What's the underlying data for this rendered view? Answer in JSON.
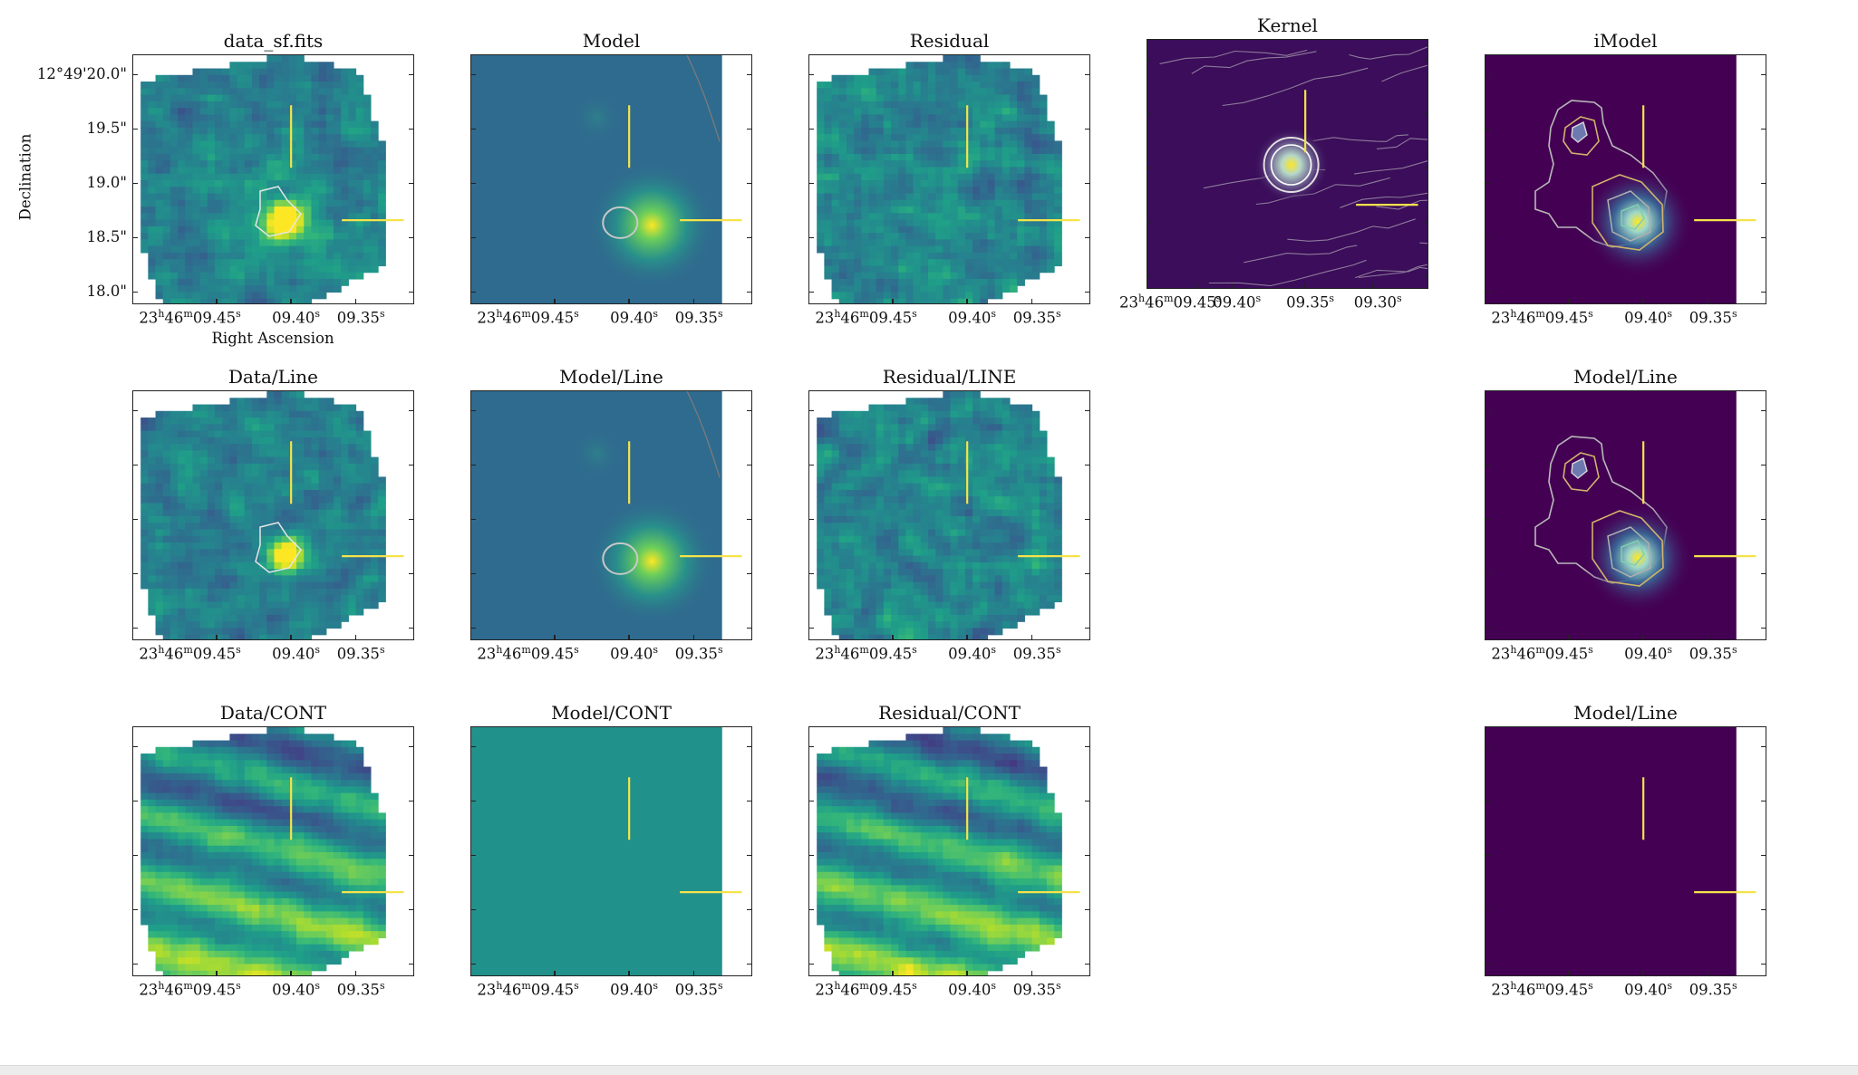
{
  "colors": {
    "viridis_dark": "#440154",
    "viridis_mid": "#21918c",
    "viridis_bright": "#fde725",
    "marker_line": "#f5e34b",
    "contour_light": "#c8c8c8",
    "background": "#ffffff"
  },
  "axis_labels": {
    "declination": "Declination",
    "right_ascension": "Right Ascension"
  },
  "chart_data": {
    "type": "heatmap",
    "layout": "3x5 grid",
    "panels": [
      {
        "title": "data_sf.fits",
        "type": "heatmap",
        "colormap": "viridis",
        "ra_ticks": [
          "23h46m09.45s",
          "09.40s",
          "09.35s"
        ],
        "dec_ticks": [
          "12°49'20.0\"",
          "19.5\"",
          "19.0\"",
          "18.5\"",
          "18.0\""
        ],
        "xlabel": "Right Ascension",
        "ylabel": "Declination"
      },
      {
        "title": "Model",
        "type": "heatmap",
        "colormap": "viridis",
        "ra_ticks": [
          "23h46m09.45s",
          "09.40s",
          "09.35s"
        ]
      },
      {
        "title": "Residual",
        "type": "heatmap",
        "colormap": "viridis",
        "ra_ticks": [
          "23h46m09.45s",
          "09.40s",
          "09.35s"
        ]
      },
      {
        "title": "Kernel",
        "type": "heatmap",
        "colormap": "viridis",
        "ra_ticks": [
          "23h46m09.45s",
          "09.40s",
          "09.35s",
          "09.30s"
        ]
      },
      {
        "title": "iModel",
        "type": "heatmap",
        "colormap": "viridis",
        "ra_ticks": [
          "23h46m09.45s",
          "09.40s",
          "09.35s"
        ]
      },
      {
        "title": "Data/Line",
        "type": "heatmap",
        "colormap": "viridis",
        "ra_ticks": [
          "23h46m09.45s",
          "09.40s",
          "09.35s"
        ]
      },
      {
        "title": "Model/Line",
        "type": "heatmap",
        "colormap": "viridis",
        "ra_ticks": [
          "23h46m09.45s",
          "09.40s",
          "09.35s"
        ]
      },
      {
        "title": "Residual/LINE",
        "type": "heatmap",
        "colormap": "viridis",
        "ra_ticks": [
          "23h46m09.45s",
          "09.40s",
          "09.35s"
        ]
      },
      {
        "title": "Model/Line",
        "type": "heatmap",
        "colormap": "viridis",
        "ra_ticks": [
          "23h46m09.45s",
          "09.40s",
          "09.35s"
        ]
      },
      {
        "title": "Data/CONT",
        "type": "heatmap",
        "colormap": "viridis",
        "ra_ticks": [
          "23h46m09.45s",
          "09.40s",
          "09.35s"
        ]
      },
      {
        "title": "Model/CONT",
        "type": "heatmap",
        "colormap": "viridis",
        "ra_ticks": [
          "23h46m09.45s",
          "09.40s",
          "09.35s"
        ]
      },
      {
        "title": "Residual/CONT",
        "type": "heatmap",
        "colormap": "viridis",
        "ra_ticks": [
          "23h46m09.45s",
          "09.40s",
          "09.35s"
        ]
      },
      {
        "title": "Model/Line",
        "type": "heatmap",
        "colormap": "viridis",
        "ra_ticks": [
          "23h46m09.45s",
          "09.40s",
          "09.35s"
        ]
      }
    ]
  }
}
